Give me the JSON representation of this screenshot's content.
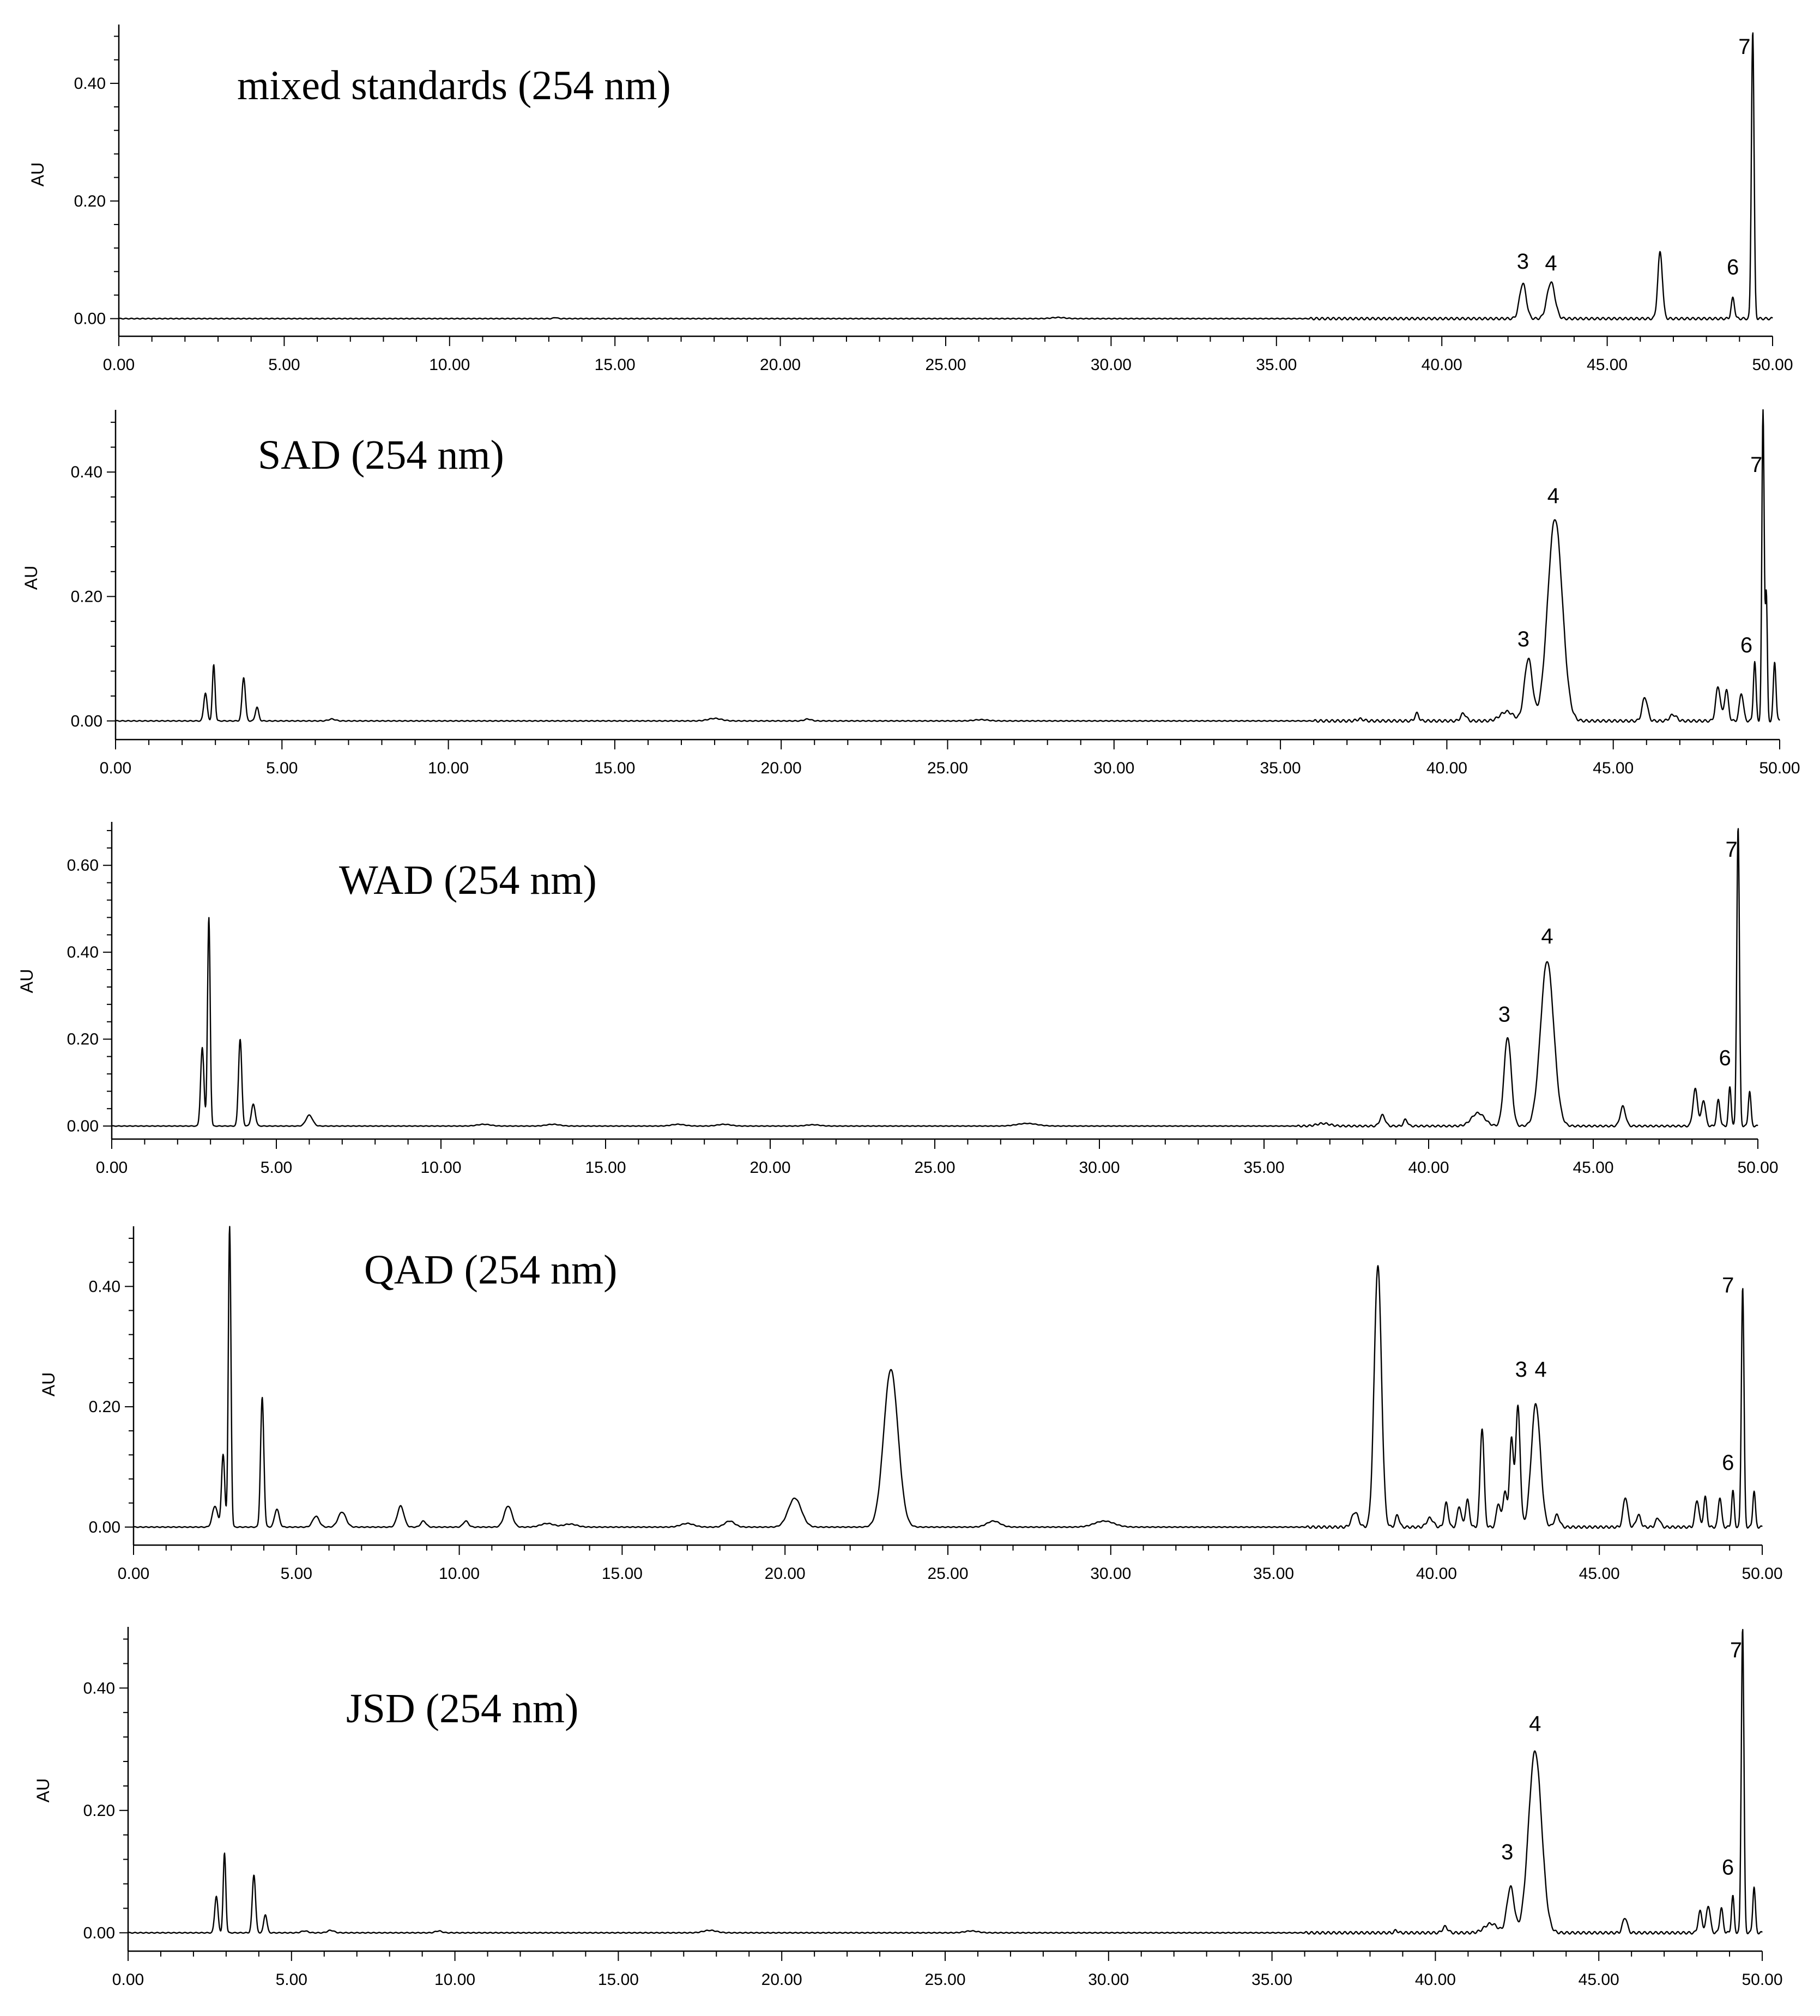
{
  "chart_data": [
    {
      "type": "line",
      "title": "mixed standards (254 nm)",
      "ylabel": "AU",
      "xlim": [
        0,
        50
      ],
      "ylim": [
        -0.03,
        0.5
      ],
      "x_ticks": [
        "0.00",
        "5.00",
        "10.00",
        "15.00",
        "20.00",
        "25.00",
        "30.00",
        "35.00",
        "40.00",
        "45.00",
        "50.00"
      ],
      "y_ticks": [
        {
          "value": 0.0,
          "label": "0.00"
        },
        {
          "value": 0.2,
          "label": "0.20"
        },
        {
          "value": 0.4,
          "label": "0.40"
        }
      ],
      "baseline_noise": [],
      "peaks": [
        {
          "rt": 13.2,
          "height": 0.002,
          "width": 0.05
        },
        {
          "rt": 28.4,
          "height": 0.002,
          "width": 0.2
        },
        {
          "rt": 42.45,
          "height": 0.06,
          "width": 0.1
        },
        {
          "rt": 43.3,
          "height": 0.062,
          "width": 0.12
        },
        {
          "rt": 46.6,
          "height": 0.113,
          "width": 0.07
        },
        {
          "rt": 48.8,
          "height": 0.035,
          "width": 0.05
        },
        {
          "rt": 49.4,
          "height": 0.49,
          "width": 0.04
        }
      ],
      "peak_labels": [
        {
          "text": "3",
          "rt": 42.45,
          "y": 0.085
        },
        {
          "text": "4",
          "rt": 43.3,
          "y": 0.082
        },
        {
          "text": "6",
          "rt": 48.8,
          "y": 0.075
        },
        {
          "text": "7",
          "rt": 49.15,
          "y": 0.45
        }
      ]
    },
    {
      "type": "line",
      "title": "SAD (254 nm)",
      "ylabel": "AU",
      "xlim": [
        0,
        50
      ],
      "ylim": [
        -0.03,
        0.5
      ],
      "x_ticks": [
        "0.00",
        "5.00",
        "10.00",
        "15.00",
        "20.00",
        "25.00",
        "30.00",
        "35.00",
        "40.00",
        "45.00",
        "50.00"
      ],
      "y_ticks": [
        {
          "value": 0.0,
          "label": "0.00"
        },
        {
          "value": 0.2,
          "label": "0.20"
        },
        {
          "value": 0.4,
          "label": "0.40"
        }
      ],
      "baseline_noise": [
        {
          "rt": 6.5,
          "height": 0.003,
          "width": 0.1
        },
        {
          "rt": 18,
          "height": 0.004,
          "width": 0.2
        },
        {
          "rt": 20.8,
          "height": 0.003,
          "width": 0.1
        },
        {
          "rt": 26,
          "height": 0.002,
          "width": 0.2
        },
        {
          "rt": 37.4,
          "height": 0.003,
          "width": 0.1
        }
      ],
      "peaks": [
        {
          "rt": 2.7,
          "height": 0.045,
          "width": 0.05
        },
        {
          "rt": 2.95,
          "height": 0.09,
          "width": 0.04
        },
        {
          "rt": 3.85,
          "height": 0.07,
          "width": 0.05
        },
        {
          "rt": 4.25,
          "height": 0.022,
          "width": 0.05
        },
        {
          "rt": 39.1,
          "height": 0.012,
          "width": 0.06
        },
        {
          "rt": 40.5,
          "height": 0.012,
          "width": 0.08
        },
        {
          "rt": 41.8,
          "height": 0.015,
          "width": 0.2
        },
        {
          "rt": 42.45,
          "height": 0.1,
          "width": 0.12
        },
        {
          "rt": 43.25,
          "height": 0.325,
          "width": 0.22
        },
        {
          "rt": 45.95,
          "height": 0.038,
          "width": 0.08
        },
        {
          "rt": 46.8,
          "height": 0.01,
          "width": 0.1
        },
        {
          "rt": 48.15,
          "height": 0.055,
          "width": 0.07
        },
        {
          "rt": 48.4,
          "height": 0.05,
          "width": 0.06
        },
        {
          "rt": 48.85,
          "height": 0.045,
          "width": 0.06
        },
        {
          "rt": 49.25,
          "height": 0.095,
          "width": 0.04
        },
        {
          "rt": 49.5,
          "height": 0.5,
          "width": 0.035
        },
        {
          "rt": 49.6,
          "height": 0.2,
          "width": 0.03
        },
        {
          "rt": 49.85,
          "height": 0.095,
          "width": 0.04
        }
      ],
      "peak_labels": [
        {
          "text": "3",
          "rt": 42.3,
          "y": 0.12
        },
        {
          "text": "4",
          "rt": 43.2,
          "y": 0.35
        },
        {
          "text": "6",
          "rt": 49.0,
          "y": 0.11
        },
        {
          "text": "7",
          "rt": 49.3,
          "y": 0.4
        }
      ]
    },
    {
      "type": "line",
      "title": "WAD (254 nm)",
      "ylabel": "AU",
      "xlim": [
        0,
        50
      ],
      "ylim": [
        -0.03,
        0.7
      ],
      "x_ticks": [
        "0.00",
        "5.00",
        "10.00",
        "15.00",
        "20.00",
        "25.00",
        "30.00",
        "35.00",
        "40.00",
        "45.00",
        "50.00"
      ],
      "y_ticks": [
        {
          "value": 0.0,
          "label": "0.00"
        },
        {
          "value": 0.2,
          "label": "0.20"
        },
        {
          "value": 0.4,
          "label": "0.40"
        },
        {
          "value": 0.6,
          "label": "0.60"
        }
      ],
      "baseline_noise": [
        {
          "rt": 11.3,
          "height": 0.004,
          "width": 0.2
        },
        {
          "rt": 13.4,
          "height": 0.004,
          "width": 0.2
        },
        {
          "rt": 17.2,
          "height": 0.004,
          "width": 0.2
        },
        {
          "rt": 18.6,
          "height": 0.004,
          "width": 0.2
        },
        {
          "rt": 21.3,
          "height": 0.003,
          "width": 0.2
        },
        {
          "rt": 27.8,
          "height": 0.006,
          "width": 0.3
        },
        {
          "rt": 36.8,
          "height": 0.006,
          "width": 0.2
        }
      ],
      "peaks": [
        {
          "rt": 2.75,
          "height": 0.18,
          "width": 0.05
        },
        {
          "rt": 2.95,
          "height": 0.48,
          "width": 0.04
        },
        {
          "rt": 3.9,
          "height": 0.2,
          "width": 0.05
        },
        {
          "rt": 4.3,
          "height": 0.05,
          "width": 0.06
        },
        {
          "rt": 6.0,
          "height": 0.025,
          "width": 0.1
        },
        {
          "rt": 38.6,
          "height": 0.025,
          "width": 0.08
        },
        {
          "rt": 39.3,
          "height": 0.015,
          "width": 0.06
        },
        {
          "rt": 41.5,
          "height": 0.03,
          "width": 0.2
        },
        {
          "rt": 42.4,
          "height": 0.205,
          "width": 0.11
        },
        {
          "rt": 43.6,
          "height": 0.38,
          "width": 0.2
        },
        {
          "rt": 45.9,
          "height": 0.045,
          "width": 0.08
        },
        {
          "rt": 48.1,
          "height": 0.085,
          "width": 0.07
        },
        {
          "rt": 48.35,
          "height": 0.06,
          "width": 0.06
        },
        {
          "rt": 48.8,
          "height": 0.06,
          "width": 0.05
        },
        {
          "rt": 49.15,
          "height": 0.09,
          "width": 0.04
        },
        {
          "rt": 49.4,
          "height": 0.69,
          "width": 0.04
        },
        {
          "rt": 49.75,
          "height": 0.08,
          "width": 0.04
        }
      ],
      "peak_labels": [
        {
          "text": "3",
          "rt": 42.3,
          "y": 0.24
        },
        {
          "text": "4",
          "rt": 43.6,
          "y": 0.42
        },
        {
          "text": "6",
          "rt": 49.0,
          "y": 0.14
        },
        {
          "text": "7",
          "rt": 49.2,
          "y": 0.62
        }
      ]
    },
    {
      "type": "line",
      "title": "QAD (254 nm)",
      "ylabel": "AU",
      "xlim": [
        0,
        50
      ],
      "ylim": [
        -0.03,
        0.5
      ],
      "x_ticks": [
        "0.00",
        "5.00",
        "10.00",
        "15.00",
        "20.00",
        "25.00",
        "30.00",
        "35.00",
        "40.00",
        "45.00",
        "50.00"
      ],
      "y_ticks": [
        {
          "value": 0.0,
          "label": "0.00"
        },
        {
          "value": 0.2,
          "label": "0.20"
        },
        {
          "value": 0.4,
          "label": "0.40"
        }
      ],
      "baseline_noise": [
        {
          "rt": 12.7,
          "height": 0.006,
          "width": 0.2
        },
        {
          "rt": 13.4,
          "height": 0.005,
          "width": 0.2
        },
        {
          "rt": 17.0,
          "height": 0.006,
          "width": 0.2
        }
      ],
      "peaks": [
        {
          "rt": 2.5,
          "height": 0.035,
          "width": 0.08
        },
        {
          "rt": 2.75,
          "height": 0.12,
          "width": 0.05
        },
        {
          "rt": 2.95,
          "height": 0.5,
          "width": 0.04
        },
        {
          "rt": 3.95,
          "height": 0.215,
          "width": 0.05
        },
        {
          "rt": 4.4,
          "height": 0.03,
          "width": 0.07
        },
        {
          "rt": 5.6,
          "height": 0.018,
          "width": 0.1
        },
        {
          "rt": 6.4,
          "height": 0.025,
          "width": 0.12
        },
        {
          "rt": 8.2,
          "height": 0.035,
          "width": 0.1
        },
        {
          "rt": 8.9,
          "height": 0.01,
          "width": 0.08
        },
        {
          "rt": 10.2,
          "height": 0.01,
          "width": 0.08
        },
        {
          "rt": 11.5,
          "height": 0.035,
          "width": 0.12
        },
        {
          "rt": 18.3,
          "height": 0.01,
          "width": 0.15
        },
        {
          "rt": 20.3,
          "height": 0.048,
          "width": 0.2
        },
        {
          "rt": 23.25,
          "height": 0.262,
          "width": 0.22
        },
        {
          "rt": 26.4,
          "height": 0.01,
          "width": 0.2
        },
        {
          "rt": 29.8,
          "height": 0.01,
          "width": 0.3
        },
        {
          "rt": 37.5,
          "height": 0.025,
          "width": 0.1
        },
        {
          "rt": 38.2,
          "height": 0.435,
          "width": 0.11
        },
        {
          "rt": 38.8,
          "height": 0.02,
          "width": 0.06
        },
        {
          "rt": 39.8,
          "height": 0.015,
          "width": 0.1
        },
        {
          "rt": 40.3,
          "height": 0.04,
          "width": 0.06
        },
        {
          "rt": 40.7,
          "height": 0.035,
          "width": 0.06
        },
        {
          "rt": 40.95,
          "height": 0.045,
          "width": 0.06
        },
        {
          "rt": 41.4,
          "height": 0.165,
          "width": 0.06
        },
        {
          "rt": 41.9,
          "height": 0.04,
          "width": 0.06
        },
        {
          "rt": 42.1,
          "height": 0.06,
          "width": 0.06
        },
        {
          "rt": 42.3,
          "height": 0.145,
          "width": 0.06
        },
        {
          "rt": 42.5,
          "height": 0.2,
          "width": 0.07
        },
        {
          "rt": 43.05,
          "height": 0.205,
          "width": 0.14
        },
        {
          "rt": 43.7,
          "height": 0.02,
          "width": 0.08
        },
        {
          "rt": 45.8,
          "height": 0.05,
          "width": 0.07
        },
        {
          "rt": 46.2,
          "height": 0.02,
          "width": 0.07
        },
        {
          "rt": 46.8,
          "height": 0.015,
          "width": 0.07
        },
        {
          "rt": 48.0,
          "height": 0.045,
          "width": 0.06
        },
        {
          "rt": 48.25,
          "height": 0.05,
          "width": 0.05
        },
        {
          "rt": 48.7,
          "height": 0.05,
          "width": 0.05
        },
        {
          "rt": 49.1,
          "height": 0.06,
          "width": 0.04
        },
        {
          "rt": 49.4,
          "height": 0.4,
          "width": 0.04
        },
        {
          "rt": 49.75,
          "height": 0.06,
          "width": 0.04
        }
      ],
      "peak_labels": [
        {
          "text": "3",
          "rt": 42.6,
          "y": 0.25
        },
        {
          "text": "4",
          "rt": 43.2,
          "y": 0.25
        },
        {
          "text": "6",
          "rt": 48.95,
          "y": 0.095
        },
        {
          "text": "7",
          "rt": 48.95,
          "y": 0.39
        }
      ]
    },
    {
      "type": "line",
      "title": "JSD (254 nm)",
      "ylabel": "AU",
      "xlim": [
        0,
        50
      ],
      "ylim": [
        -0.03,
        0.5
      ],
      "x_ticks": [
        "0.00",
        "5.00",
        "10.00",
        "15.00",
        "20.00",
        "25.00",
        "30.00",
        "35.00",
        "40.00",
        "45.00",
        "50.00"
      ],
      "y_ticks": [
        {
          "value": 0.0,
          "label": "0.00"
        },
        {
          "value": 0.2,
          "label": "0.20"
        },
        {
          "value": 0.4,
          "label": "0.40"
        }
      ],
      "baseline_noise": [
        {
          "rt": 5.4,
          "height": 0.003,
          "width": 0.1
        },
        {
          "rt": 6.2,
          "height": 0.004,
          "width": 0.1
        },
        {
          "rt": 9.5,
          "height": 0.003,
          "width": 0.1
        },
        {
          "rt": 17.8,
          "height": 0.004,
          "width": 0.2
        },
        {
          "rt": 25.8,
          "height": 0.003,
          "width": 0.2
        },
        {
          "rt": 38.8,
          "height": 0.004,
          "width": 0.05
        }
      ],
      "peaks": [
        {
          "rt": 2.7,
          "height": 0.06,
          "width": 0.05
        },
        {
          "rt": 2.95,
          "height": 0.13,
          "width": 0.04
        },
        {
          "rt": 3.85,
          "height": 0.095,
          "width": 0.05
        },
        {
          "rt": 4.2,
          "height": 0.03,
          "width": 0.05
        },
        {
          "rt": 40.3,
          "height": 0.01,
          "width": 0.08
        },
        {
          "rt": 41.7,
          "height": 0.015,
          "width": 0.2
        },
        {
          "rt": 42.3,
          "height": 0.075,
          "width": 0.11
        },
        {
          "rt": 43.05,
          "height": 0.297,
          "width": 0.2
        },
        {
          "rt": 45.8,
          "height": 0.025,
          "width": 0.07
        },
        {
          "rt": 48.1,
          "height": 0.035,
          "width": 0.06
        },
        {
          "rt": 48.35,
          "height": 0.045,
          "width": 0.06
        },
        {
          "rt": 48.75,
          "height": 0.04,
          "width": 0.05
        },
        {
          "rt": 49.1,
          "height": 0.06,
          "width": 0.04
        },
        {
          "rt": 49.4,
          "height": 0.5,
          "width": 0.04
        },
        {
          "rt": 49.75,
          "height": 0.075,
          "width": 0.04
        }
      ],
      "peak_labels": [
        {
          "text": "3",
          "rt": 42.2,
          "y": 0.12
        },
        {
          "text": "4",
          "rt": 43.05,
          "y": 0.33
        },
        {
          "text": "6",
          "rt": 48.95,
          "y": 0.095
        },
        {
          "text": "7",
          "rt": 49.2,
          "y": 0.45
        }
      ]
    }
  ]
}
